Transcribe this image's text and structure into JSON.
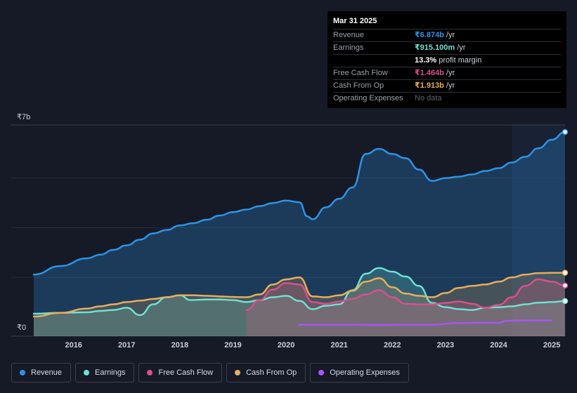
{
  "tooltip": {
    "date": "Mar 31 2025",
    "rows": [
      {
        "label": "Revenue",
        "value": "₹6.874b",
        "unit": "/yr",
        "color": "#2e93e6"
      },
      {
        "label": "Earnings",
        "value": "₹915.100m",
        "unit": "/yr",
        "color": "#6fe0d3"
      },
      {
        "label": "",
        "value": "13.3%",
        "unit": "profit margin",
        "color": "#ffffff"
      },
      {
        "label": "Free Cash Flow",
        "value": "₹1.464b",
        "unit": "/yr",
        "color": "#d9508a"
      },
      {
        "label": "Cash From Op",
        "value": "₹1.913b",
        "unit": "/yr",
        "color": "#e9ad5b"
      },
      {
        "label": "Operating Expenses",
        "value": "No data",
        "unit": "",
        "color": "#5b606a"
      }
    ]
  },
  "legend": [
    {
      "label": "Revenue",
      "color": "#2e93e6"
    },
    {
      "label": "Earnings",
      "color": "#6fe0d3"
    },
    {
      "label": "Free Cash Flow",
      "color": "#d9508a"
    },
    {
      "label": "Cash From Op",
      "color": "#e9ad5b"
    },
    {
      "label": "Operating Expenses",
      "color": "#a855f7"
    }
  ],
  "chart_data": {
    "type": "area",
    "currency_unit": "INR billions",
    "y_axis_labels": {
      "top": "₹7b",
      "bottom": "₹0"
    },
    "ylim": [
      0,
      7
    ],
    "xlim": [
      2015.25,
      2025.25
    ],
    "x_tick_labels": [
      "2016",
      "2017",
      "2018",
      "2019",
      "2020",
      "2021",
      "2022",
      "2023",
      "2024",
      "2025"
    ],
    "x_ticks": [
      2016,
      2017,
      2018,
      2019,
      2020,
      2021,
      2022,
      2023,
      2024,
      2025
    ],
    "forecast_shade_start": 2024.25,
    "series": [
      {
        "name": "Revenue",
        "color": "#2e93e6",
        "points": [
          [
            2015.25,
            1.85
          ],
          [
            2015.75,
            2.15
          ],
          [
            2016.25,
            2.42
          ],
          [
            2016.5,
            2.55
          ],
          [
            2016.75,
            2.72
          ],
          [
            2017.0,
            2.88
          ],
          [
            2017.25,
            3.08
          ],
          [
            2017.5,
            3.3
          ],
          [
            2017.75,
            3.42
          ],
          [
            2018.0,
            3.58
          ],
          [
            2018.25,
            3.66
          ],
          [
            2018.5,
            3.78
          ],
          [
            2018.75,
            3.93
          ],
          [
            2019.0,
            4.05
          ],
          [
            2019.25,
            4.14
          ],
          [
            2019.5,
            4.26
          ],
          [
            2019.75,
            4.37
          ],
          [
            2020.0,
            4.46
          ],
          [
            2020.25,
            4.4
          ],
          [
            2020.4,
            3.9
          ],
          [
            2020.5,
            3.8
          ],
          [
            2020.75,
            4.22
          ],
          [
            2021.0,
            4.52
          ],
          [
            2021.25,
            4.92
          ],
          [
            2021.5,
            6.1
          ],
          [
            2021.75,
            6.28
          ],
          [
            2022.0,
            6.1
          ],
          [
            2022.25,
            5.95
          ],
          [
            2022.5,
            5.55
          ],
          [
            2022.75,
            5.15
          ],
          [
            2023.0,
            5.25
          ],
          [
            2023.25,
            5.3
          ],
          [
            2023.5,
            5.38
          ],
          [
            2023.75,
            5.5
          ],
          [
            2024.0,
            5.6
          ],
          [
            2024.25,
            5.8
          ],
          [
            2024.5,
            6.0
          ],
          [
            2024.75,
            6.3
          ],
          [
            2025.0,
            6.6
          ],
          [
            2025.25,
            6.874
          ]
        ]
      },
      {
        "name": "Earnings",
        "color": "#6fe0d3",
        "points": [
          [
            2015.25,
            0.47
          ],
          [
            2015.75,
            0.5
          ],
          [
            2016.25,
            0.52
          ],
          [
            2016.5,
            0.57
          ],
          [
            2016.75,
            0.6
          ],
          [
            2017.0,
            0.68
          ],
          [
            2017.25,
            0.42
          ],
          [
            2017.5,
            0.8
          ],
          [
            2017.75,
            1.05
          ],
          [
            2018.0,
            1.12
          ],
          [
            2018.2,
            0.95
          ],
          [
            2018.5,
            0.97
          ],
          [
            2018.75,
            0.97
          ],
          [
            2019.0,
            0.95
          ],
          [
            2019.25,
            0.88
          ],
          [
            2019.5,
            0.95
          ],
          [
            2019.75,
            1.05
          ],
          [
            2020.0,
            1.1
          ],
          [
            2020.25,
            0.92
          ],
          [
            2020.5,
            0.63
          ],
          [
            2020.75,
            0.75
          ],
          [
            2021.0,
            0.8
          ],
          [
            2021.25,
            1.3
          ],
          [
            2021.5,
            1.88
          ],
          [
            2021.75,
            2.08
          ],
          [
            2022.0,
            1.95
          ],
          [
            2022.25,
            1.78
          ],
          [
            2022.5,
            1.45
          ],
          [
            2022.75,
            0.85
          ],
          [
            2023.0,
            0.7
          ],
          [
            2023.25,
            0.63
          ],
          [
            2023.5,
            0.6
          ],
          [
            2023.75,
            0.68
          ],
          [
            2024.0,
            0.7
          ],
          [
            2024.25,
            0.73
          ],
          [
            2024.5,
            0.8
          ],
          [
            2024.75,
            0.86
          ],
          [
            2025.0,
            0.88
          ],
          [
            2025.25,
            0.915
          ]
        ]
      },
      {
        "name": "Free Cash Flow",
        "color": "#d9508a",
        "points": [
          [
            2019.25,
            0.6
          ],
          [
            2019.5,
            0.95
          ],
          [
            2019.75,
            1.32
          ],
          [
            2020.0,
            1.55
          ],
          [
            2020.25,
            1.5
          ],
          [
            2020.5,
            0.88
          ],
          [
            2020.75,
            0.82
          ],
          [
            2021.0,
            0.9
          ],
          [
            2021.25,
            1.0
          ],
          [
            2021.5,
            1.15
          ],
          [
            2021.75,
            1.3
          ],
          [
            2022.0,
            1.05
          ],
          [
            2022.25,
            0.82
          ],
          [
            2022.5,
            0.8
          ],
          [
            2022.75,
            0.8
          ],
          [
            2023.0,
            0.85
          ],
          [
            2023.25,
            0.9
          ],
          [
            2023.5,
            0.82
          ],
          [
            2023.75,
            0.68
          ],
          [
            2024.0,
            0.78
          ],
          [
            2024.25,
            1.05
          ],
          [
            2024.5,
            1.45
          ],
          [
            2024.75,
            1.68
          ],
          [
            2025.0,
            1.6
          ],
          [
            2025.25,
            1.464
          ]
        ]
      },
      {
        "name": "Cash From Op",
        "color": "#e9ad5b",
        "points": [
          [
            2015.25,
            0.37
          ],
          [
            2015.75,
            0.5
          ],
          [
            2016.25,
            0.65
          ],
          [
            2016.5,
            0.73
          ],
          [
            2016.75,
            0.8
          ],
          [
            2017.0,
            0.88
          ],
          [
            2017.25,
            0.93
          ],
          [
            2017.5,
            0.99
          ],
          [
            2017.75,
            1.05
          ],
          [
            2018.0,
            1.12
          ],
          [
            2018.25,
            1.12
          ],
          [
            2018.5,
            1.1
          ],
          [
            2018.75,
            1.08
          ],
          [
            2019.0,
            1.06
          ],
          [
            2019.25,
            1.05
          ],
          [
            2019.5,
            1.15
          ],
          [
            2019.75,
            1.5
          ],
          [
            2020.0,
            1.68
          ],
          [
            2020.25,
            1.75
          ],
          [
            2020.5,
            1.08
          ],
          [
            2020.75,
            1.05
          ],
          [
            2021.0,
            1.12
          ],
          [
            2021.25,
            1.28
          ],
          [
            2021.5,
            1.6
          ],
          [
            2021.75,
            1.72
          ],
          [
            2022.0,
            1.4
          ],
          [
            2022.25,
            1.18
          ],
          [
            2022.5,
            1.1
          ],
          [
            2022.75,
            1.05
          ],
          [
            2023.0,
            1.2
          ],
          [
            2023.25,
            1.38
          ],
          [
            2023.5,
            1.45
          ],
          [
            2023.75,
            1.5
          ],
          [
            2024.0,
            1.6
          ],
          [
            2024.25,
            1.75
          ],
          [
            2024.5,
            1.85
          ],
          [
            2024.75,
            1.9
          ],
          [
            2025.0,
            1.91
          ],
          [
            2025.25,
            1.913
          ]
        ]
      },
      {
        "name": "Operating Expenses",
        "color": "#a855f7",
        "points": [
          [
            2020.25,
            0.08
          ],
          [
            2020.75,
            0.08
          ],
          [
            2021.25,
            0.08
          ],
          [
            2021.75,
            0.07
          ],
          [
            2022.25,
            0.08
          ],
          [
            2022.75,
            0.08
          ],
          [
            2023.25,
            0.14
          ],
          [
            2023.75,
            0.15
          ],
          [
            2024.0,
            0.15
          ],
          [
            2024.15,
            0.22
          ],
          [
            2024.5,
            0.23
          ],
          [
            2025.0,
            0.23
          ]
        ]
      }
    ]
  }
}
